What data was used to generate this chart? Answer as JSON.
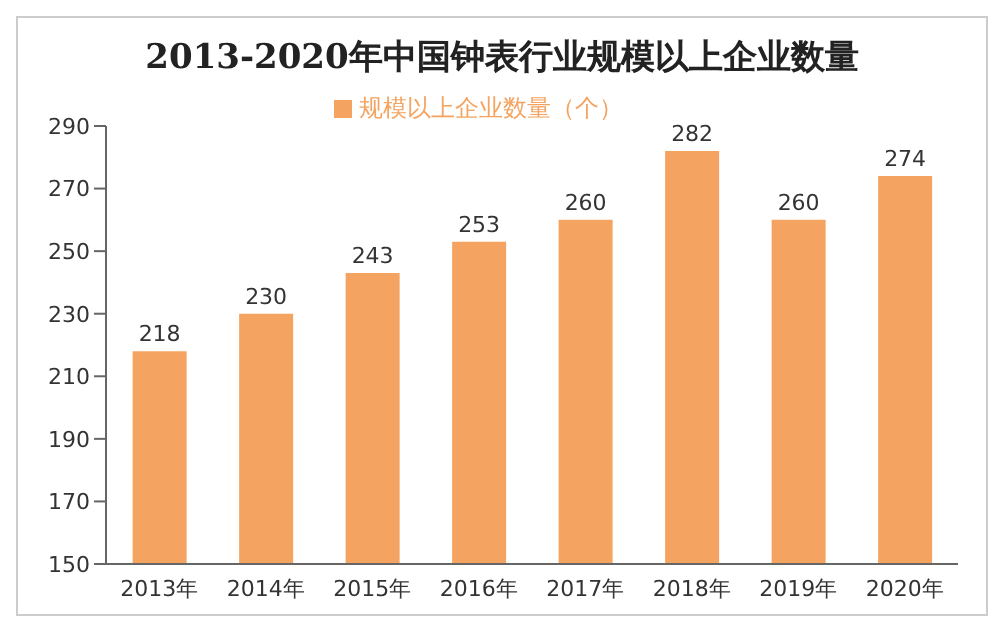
{
  "chart_data": {
    "type": "bar",
    "title": "2013-2020年中国钟表行业规模以上企业数量",
    "categories": [
      "2013年",
      "2014年",
      "2015年",
      "2016年",
      "2017年",
      "2018年",
      "2019年",
      "2020年"
    ],
    "series": [
      {
        "name": "规模以上企业数量（个）",
        "color": "#f4a460",
        "values": [
          218,
          230,
          243,
          253,
          260,
          282,
          260,
          274
        ]
      }
    ],
    "ylim": [
      150,
      290
    ],
    "yticks": [
      150,
      170,
      190,
      210,
      230,
      250,
      270,
      290
    ],
    "grid": false,
    "legend": "top",
    "data_labels": true
  }
}
